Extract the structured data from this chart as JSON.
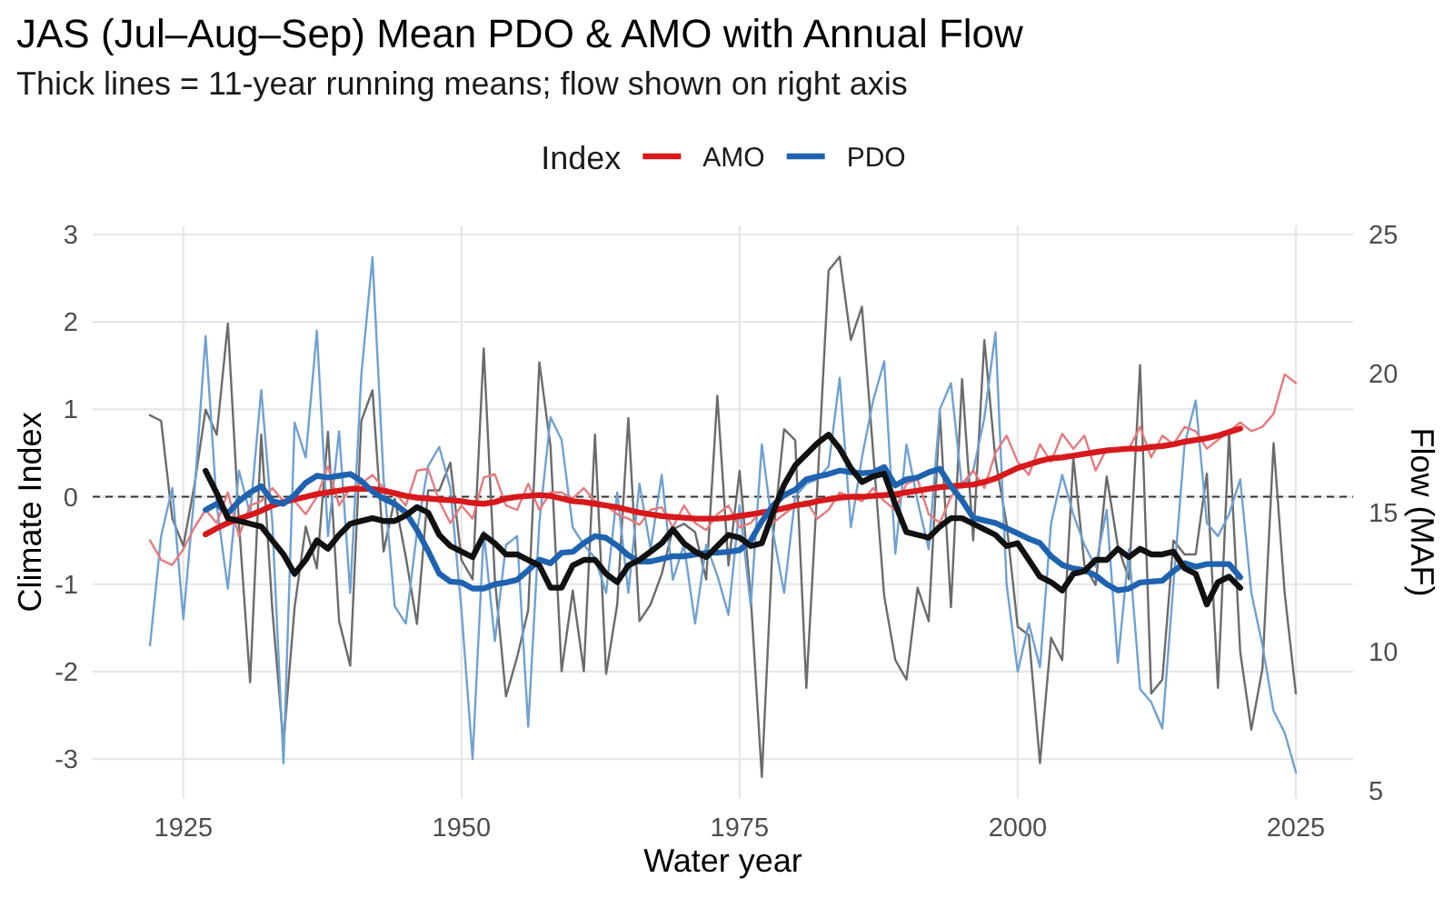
{
  "chart_data": {
    "type": "line",
    "title": "JAS (Jul–Aug–Sep) Mean PDO & AMO with Annual Flow",
    "subtitle": "Thick lines = 11-year running means; flow shown on right axis",
    "xlabel": "Water year",
    "ylabel": "Climate Index",
    "y2label": "Flow (MAF)",
    "legend_title": "Index",
    "legend": "top",
    "grid": true,
    "xlim": [
      1916.85,
      2030.15
    ],
    "xticks": [
      1925,
      1950,
      1975,
      2000,
      2025
    ],
    "ylim": [
      -3.45,
      3.1
    ],
    "yticks": [
      -3,
      -2,
      -1,
      0,
      1,
      2,
      3
    ],
    "y2lim": [
      4.73,
      25.31
    ],
    "y2ticks": [
      5,
      10,
      15,
      20,
      25
    ],
    "ref_lines": [
      {
        "axis": "y",
        "value": 0,
        "color": "#333333",
        "line_style": "dashed"
      }
    ],
    "x": [
      1922,
      1923,
      1924,
      1925,
      1926,
      1927,
      1928,
      1929,
      1930,
      1931,
      1932,
      1933,
      1934,
      1935,
      1936,
      1937,
      1938,
      1939,
      1940,
      1941,
      1942,
      1943,
      1944,
      1945,
      1946,
      1947,
      1948,
      1949,
      1950,
      1951,
      1952,
      1953,
      1954,
      1955,
      1956,
      1957,
      1958,
      1959,
      1960,
      1961,
      1962,
      1963,
      1964,
      1965,
      1966,
      1967,
      1968,
      1969,
      1970,
      1971,
      1972,
      1973,
      1974,
      1975,
      1976,
      1977,
      1978,
      1979,
      1980,
      1981,
      1982,
      1983,
      1984,
      1985,
      1986,
      1987,
      1988,
      1989,
      1990,
      1991,
      1992,
      1993,
      1994,
      1995,
      1996,
      1997,
      1998,
      1999,
      2000,
      2001,
      2002,
      2003,
      2004,
      2005,
      2006,
      2007,
      2008,
      2009,
      2010,
      2011,
      2012,
      2013,
      2014,
      2015,
      2016,
      2017,
      2018,
      2019,
      2020,
      2021,
      2022,
      2023,
      2024,
      2025
    ],
    "series": [
      {
        "color": "#6b6b6b",
        "axis": "y2",
        "values": [
          18.5,
          18.3,
          14.8,
          13.8,
          16.0,
          18.7,
          17.8,
          21.8,
          14.6,
          8.9,
          17.8,
          11.5,
          6.7,
          11.6,
          14.5,
          13.0,
          17.9,
          11.1,
          9.5,
          18.3,
          19.4,
          13.6,
          15.5,
          13.4,
          11.0,
          15.8,
          15.8,
          16.8,
          13.3,
          12.6,
          20.9,
          12.6,
          8.4,
          9.8,
          11.5,
          20.4,
          17.4,
          9.3,
          12.2,
          9.3,
          17.8,
          9.2,
          11.7,
          18.4,
          11.1,
          11.7,
          12.8,
          14.4,
          14.6,
          14.3,
          12.6,
          19.2,
          13.1,
          16.5,
          12.0,
          5.5,
          14.1,
          18.0,
          17.6,
          8.7,
          16.0,
          23.7,
          24.2,
          21.2,
          22.4,
          17.2,
          12.0,
          9.7,
          9.0,
          12.3,
          11.1,
          18.6,
          11.6,
          19.8,
          14.0,
          21.2,
          16.9,
          14.6,
          10.9,
          10.6,
          6.0,
          10.5,
          9.7,
          17.0,
          13.1,
          12.4,
          16.3,
          13.8,
          12.6,
          20.3,
          8.5,
          9.0,
          14.0,
          13.5,
          13.5,
          16.4,
          8.7,
          17.9,
          10.0,
          7.2,
          9.4,
          17.5,
          12.1,
          8.5
        ]
      },
      {
        "color": "#6fa1d2",
        "values": [
          -1.7,
          -0.45,
          0.1,
          -1.4,
          0.05,
          1.84,
          -0.1,
          -1.05,
          0.3,
          -0.2,
          1.22,
          -0.3,
          -3.05,
          0.85,
          0.45,
          1.9,
          -0.45,
          0.75,
          -1.1,
          1.4,
          2.74,
          0.2,
          -1.25,
          -1.45,
          -0.4,
          0.35,
          0.57,
          0.1,
          -1.3,
          -3.0,
          -0.4,
          -1.65,
          -0.55,
          -0.45,
          -2.63,
          -0.3,
          0.91,
          0.65,
          -0.35,
          -0.55,
          -0.7,
          -1.1,
          0.05,
          -1.1,
          0.15,
          -0.6,
          0.25,
          -0.95,
          -0.55,
          -1.45,
          -0.55,
          -0.9,
          -1.35,
          -0.1,
          -1.25,
          0.6,
          -0.4,
          -1.1,
          0.0,
          0.15,
          0.2,
          0.35,
          1.36,
          -0.35,
          0.45,
          1.1,
          1.55,
          -0.65,
          0.6,
          -0.05,
          -0.6,
          1.0,
          1.3,
          0.1,
          0.3,
          0.9,
          1.88,
          -1.0,
          -2.0,
          -1.45,
          -1.95,
          -0.3,
          0.25,
          -0.2,
          -0.55,
          -0.8,
          -0.15,
          -1.9,
          -0.6,
          -2.2,
          -2.35,
          -2.65,
          -1.0,
          0.6,
          1.1,
          -0.3,
          -0.45,
          -0.2,
          0.2,
          -1.1,
          -1.7,
          -2.45,
          -2.7,
          -3.15
        ]
      },
      {
        "color": "#e57b7e",
        "values": [
          -0.5,
          -0.72,
          -0.78,
          -0.6,
          -0.35,
          -0.15,
          -0.3,
          0.05,
          -0.45,
          -0.1,
          -0.05,
          0.1,
          -0.05,
          -0.05,
          -0.2,
          0.0,
          0.35,
          -0.1,
          0.1,
          0.15,
          0.25,
          0.1,
          0.05,
          -0.1,
          0.3,
          0.32,
          -0.05,
          -0.3,
          -0.1,
          -0.25,
          0.22,
          0.26,
          -0.1,
          -0.15,
          0.15,
          -0.15,
          0.05,
          0.05,
          -0.02,
          0.1,
          -0.05,
          -0.1,
          -0.2,
          -0.25,
          -0.32,
          -0.15,
          -0.12,
          -0.35,
          -0.1,
          -0.3,
          -0.38,
          -0.2,
          -0.1,
          -0.35,
          -0.3,
          -0.15,
          -0.3,
          -0.2,
          -0.1,
          -0.05,
          -0.25,
          -0.15,
          0.05,
          0.0,
          -0.05,
          0.1,
          -0.05,
          -0.15,
          0.15,
          0.2,
          -0.2,
          -0.3,
          0.0,
          0.15,
          0.3,
          0.1,
          0.5,
          0.7,
          0.4,
          0.25,
          0.6,
          0.4,
          0.72,
          0.55,
          0.7,
          0.3,
          0.55,
          0.55,
          0.55,
          0.8,
          0.45,
          0.7,
          0.6,
          0.8,
          0.75,
          0.55,
          0.65,
          0.75,
          0.85,
          0.75,
          0.8,
          0.95,
          1.4,
          1.3
        ]
      },
      {
        "name": "AMO",
        "color": "#d7191c",
        "x": [
          1927,
          1928,
          1929,
          1930,
          1931,
          1932,
          1933,
          1934,
          1935,
          1936,
          1937,
          1938,
          1939,
          1940,
          1941,
          1942,
          1943,
          1944,
          1945,
          1946,
          1947,
          1948,
          1949,
          1950,
          1951,
          1952,
          1953,
          1954,
          1955,
          1956,
          1957,
          1958,
          1959,
          1960,
          1961,
          1962,
          1963,
          1964,
          1965,
          1966,
          1967,
          1968,
          1969,
          1970,
          1971,
          1972,
          1973,
          1974,
          1975,
          1976,
          1977,
          1978,
          1979,
          1980,
          1981,
          1982,
          1983,
          1984,
          1985,
          1986,
          1987,
          1988,
          1989,
          1990,
          1991,
          1992,
          1993,
          1994,
          1995,
          1996,
          1997,
          1998,
          1999,
          2000,
          2001,
          2002,
          2003,
          2004,
          2005,
          2006,
          2007,
          2008,
          2009,
          2010,
          2011,
          2012,
          2013,
          2014,
          2015,
          2016,
          2017,
          2018,
          2019,
          2020
        ],
        "values": [
          -0.43,
          -0.36,
          -0.3,
          -0.25,
          -0.21,
          -0.16,
          -0.1,
          -0.06,
          -0.03,
          0.0,
          0.03,
          0.05,
          0.07,
          0.09,
          0.09,
          0.09,
          0.07,
          0.04,
          0.01,
          -0.01,
          -0.02,
          -0.03,
          -0.04,
          -0.05,
          -0.07,
          -0.08,
          -0.06,
          -0.02,
          0.0,
          0.01,
          0.02,
          0.01,
          -0.02,
          -0.05,
          -0.06,
          -0.08,
          -0.1,
          -0.12,
          -0.15,
          -0.18,
          -0.2,
          -0.22,
          -0.23,
          -0.24,
          -0.25,
          -0.25,
          -0.25,
          -0.24,
          -0.22,
          -0.2,
          -0.18,
          -0.16,
          -0.13,
          -0.1,
          -0.08,
          -0.05,
          -0.03,
          -0.01,
          0.0,
          0.0,
          0.01,
          0.02,
          0.03,
          0.05,
          0.07,
          0.09,
          0.11,
          0.12,
          0.13,
          0.14,
          0.17,
          0.21,
          0.27,
          0.33,
          0.37,
          0.41,
          0.44,
          0.45,
          0.47,
          0.49,
          0.51,
          0.53,
          0.54,
          0.55,
          0.55,
          0.57,
          0.58,
          0.6,
          0.63,
          0.65,
          0.67,
          0.7,
          0.74,
          0.78
        ]
      },
      {
        "name": "PDO",
        "color": "#1f63b0",
        "x": [
          1927,
          1928,
          1929,
          1930,
          1931,
          1932,
          1933,
          1934,
          1935,
          1936,
          1937,
          1938,
          1939,
          1940,
          1941,
          1942,
          1943,
          1944,
          1945,
          1946,
          1947,
          1948,
          1949,
          1950,
          1951,
          1952,
          1953,
          1954,
          1955,
          1956,
          1957,
          1958,
          1959,
          1960,
          1961,
          1962,
          1963,
          1964,
          1965,
          1966,
          1967,
          1968,
          1969,
          1970,
          1971,
          1972,
          1973,
          1974,
          1975,
          1976,
          1977,
          1978,
          1979,
          1980,
          1981,
          1982,
          1983,
          1984,
          1985,
          1986,
          1987,
          1988,
          1989,
          1990,
          1991,
          1992,
          1993,
          1994,
          1995,
          1996,
          1997,
          1998,
          1999,
          2000,
          2001,
          2002,
          2003,
          2004,
          2005,
          2006,
          2007,
          2008,
          2009,
          2010,
          2011,
          2012,
          2013,
          2014,
          2015,
          2016,
          2017,
          2018,
          2019,
          2020
        ],
        "values": [
          -0.15,
          -0.08,
          -0.19,
          -0.05,
          0.05,
          0.12,
          -0.05,
          -0.08,
          0.02,
          0.16,
          0.24,
          0.22,
          0.24,
          0.26,
          0.18,
          0.06,
          -0.02,
          -0.08,
          -0.18,
          -0.38,
          -0.62,
          -0.88,
          -0.97,
          -0.98,
          -1.05,
          -1.05,
          -1.0,
          -0.98,
          -0.95,
          -0.84,
          -0.72,
          -0.76,
          -0.64,
          -0.63,
          -0.53,
          -0.45,
          -0.47,
          -0.56,
          -0.67,
          -0.74,
          -0.74,
          -0.71,
          -0.68,
          -0.68,
          -0.66,
          -0.64,
          -0.64,
          -0.63,
          -0.61,
          -0.5,
          -0.28,
          -0.1,
          0.02,
          0.08,
          0.2,
          0.23,
          0.26,
          0.3,
          0.28,
          0.27,
          0.28,
          0.34,
          0.13,
          0.2,
          0.22,
          0.28,
          0.32,
          0.12,
          -0.04,
          -0.24,
          -0.27,
          -0.3,
          -0.36,
          -0.42,
          -0.48,
          -0.53,
          -0.68,
          -0.78,
          -0.82,
          -0.84,
          -0.9,
          -1.0,
          -1.07,
          -1.05,
          -0.98,
          -0.97,
          -0.96,
          -0.85,
          -0.76,
          -0.8,
          -0.77,
          -0.77,
          -0.77,
          -0.92
        ]
      },
      {
        "color": "#111111",
        "axis": "y2",
        "x": [
          1927,
          1928,
          1929,
          1930,
          1931,
          1932,
          1933,
          1934,
          1935,
          1936,
          1937,
          1938,
          1939,
          1940,
          1941,
          1942,
          1943,
          1944,
          1945,
          1946,
          1947,
          1948,
          1949,
          1950,
          1951,
          1952,
          1953,
          1954,
          1955,
          1956,
          1957,
          1958,
          1959,
          1960,
          1961,
          1962,
          1963,
          1964,
          1965,
          1966,
          1967,
          1968,
          1969,
          1970,
          1971,
          1972,
          1973,
          1974,
          1975,
          1976,
          1977,
          1978,
          1979,
          1980,
          1981,
          1982,
          1983,
          1984,
          1985,
          1986,
          1987,
          1988,
          1989,
          1990,
          1991,
          1992,
          1993,
          1994,
          1995,
          1996,
          1997,
          1998,
          1999,
          2000,
          2001,
          2002,
          2003,
          2004,
          2005,
          2006,
          2007,
          2008,
          2009,
          2010,
          2011,
          2012,
          2013,
          2014,
          2015,
          2016,
          2017,
          2018,
          2019,
          2020
        ],
        "values": [
          16.5,
          15.7,
          14.8,
          14.7,
          14.6,
          14.5,
          14.0,
          13.5,
          12.8,
          13.3,
          14.0,
          13.7,
          14.2,
          14.6,
          14.7,
          14.8,
          14.7,
          14.7,
          14.9,
          15.2,
          15.0,
          14.2,
          13.8,
          13.6,
          13.4,
          14.2,
          13.9,
          13.5,
          13.5,
          13.3,
          13.1,
          12.3,
          12.3,
          13.1,
          13.3,
          13.3,
          12.8,
          12.5,
          13.1,
          13.3,
          13.6,
          13.9,
          14.4,
          13.9,
          13.6,
          13.4,
          13.8,
          14.2,
          14.1,
          13.8,
          13.9,
          15.0,
          16.0,
          16.7,
          17.1,
          17.5,
          17.8,
          17.3,
          16.6,
          16.1,
          16.3,
          16.4,
          15.3,
          14.3,
          14.2,
          14.1,
          14.5,
          14.8,
          14.8,
          14.6,
          14.4,
          14.2,
          13.8,
          13.9,
          13.3,
          12.7,
          12.5,
          12.2,
          12.8,
          12.9,
          13.3,
          13.3,
          13.7,
          13.4,
          13.7,
          13.5,
          13.5,
          13.6,
          13.0,
          12.8,
          11.7,
          12.5,
          12.7,
          12.3
        ]
      }
    ]
  }
}
